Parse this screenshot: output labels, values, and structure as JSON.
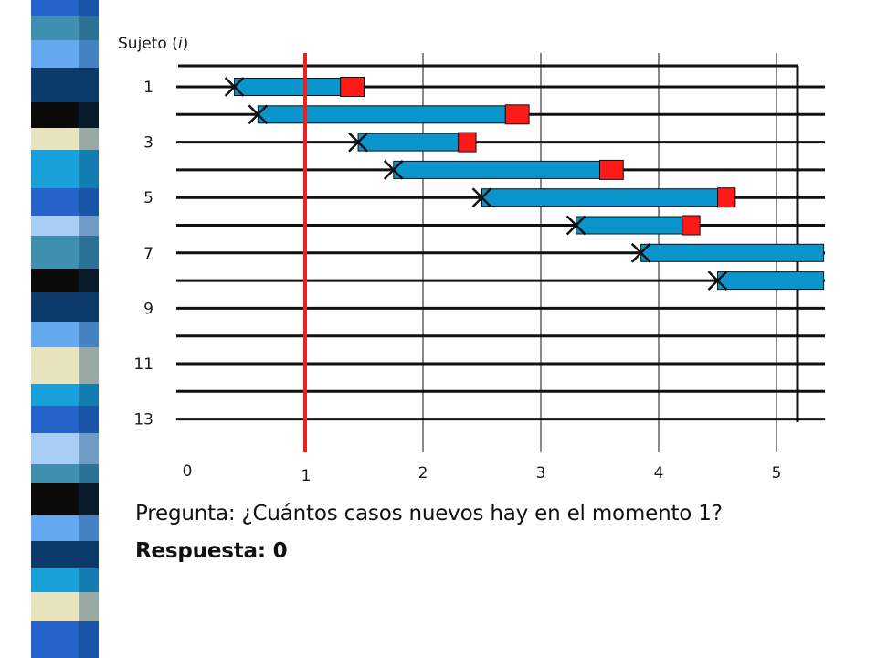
{
  "chart_data": {
    "type": "timeline",
    "ylabel_prefix": "Sujeto (",
    "ylabel_var": "i",
    "ylabel_suffix": ")",
    "y_tick_labels": [
      "1",
      "3",
      "5",
      "7",
      "9",
      "11",
      "13"
    ],
    "x_tick_labels": [
      "0",
      "1",
      "2",
      "3",
      "4",
      "5"
    ],
    "marker_time": 1,
    "subjects": [
      {
        "subject": 1,
        "onset": 0.4,
        "duration_end": 1.3,
        "event_end": 1.5
      },
      {
        "subject": 2,
        "onset": 0.6,
        "duration_end": 2.7,
        "event_end": 2.9
      },
      {
        "subject": 3,
        "onset": 1.45,
        "duration_end": 2.3,
        "event_end": 2.45
      },
      {
        "subject": 4,
        "onset": 1.75,
        "duration_end": 3.5,
        "event_end": 3.7
      },
      {
        "subject": 5,
        "onset": 2.5,
        "duration_end": 4.5,
        "event_end": 4.65
      },
      {
        "subject": 6,
        "onset": 3.3,
        "duration_end": 4.2,
        "event_end": 4.35
      },
      {
        "subject": 7,
        "onset": 3.85,
        "duration_end": 5.4,
        "event_end": null
      },
      {
        "subject": 8,
        "onset": 4.5,
        "duration_end": 5.4,
        "event_end": null
      }
    ],
    "colors": {
      "bar": "#0a96cc",
      "event": "#ff1a1a",
      "marker_line": "#e8211c",
      "lines": "#111111"
    }
  },
  "question": "Pregunta: ¿Cuántos casos nuevos hay en el momento 1?",
  "answer": "Respuesta: 0",
  "stripe_colors": [
    "#2563c9",
    "#64a8f0",
    "#0a0a0a",
    "#e9e4c0",
    "#3f8fb0",
    "#0b3a6b",
    "#1aa0d8",
    "#a8cef5"
  ]
}
